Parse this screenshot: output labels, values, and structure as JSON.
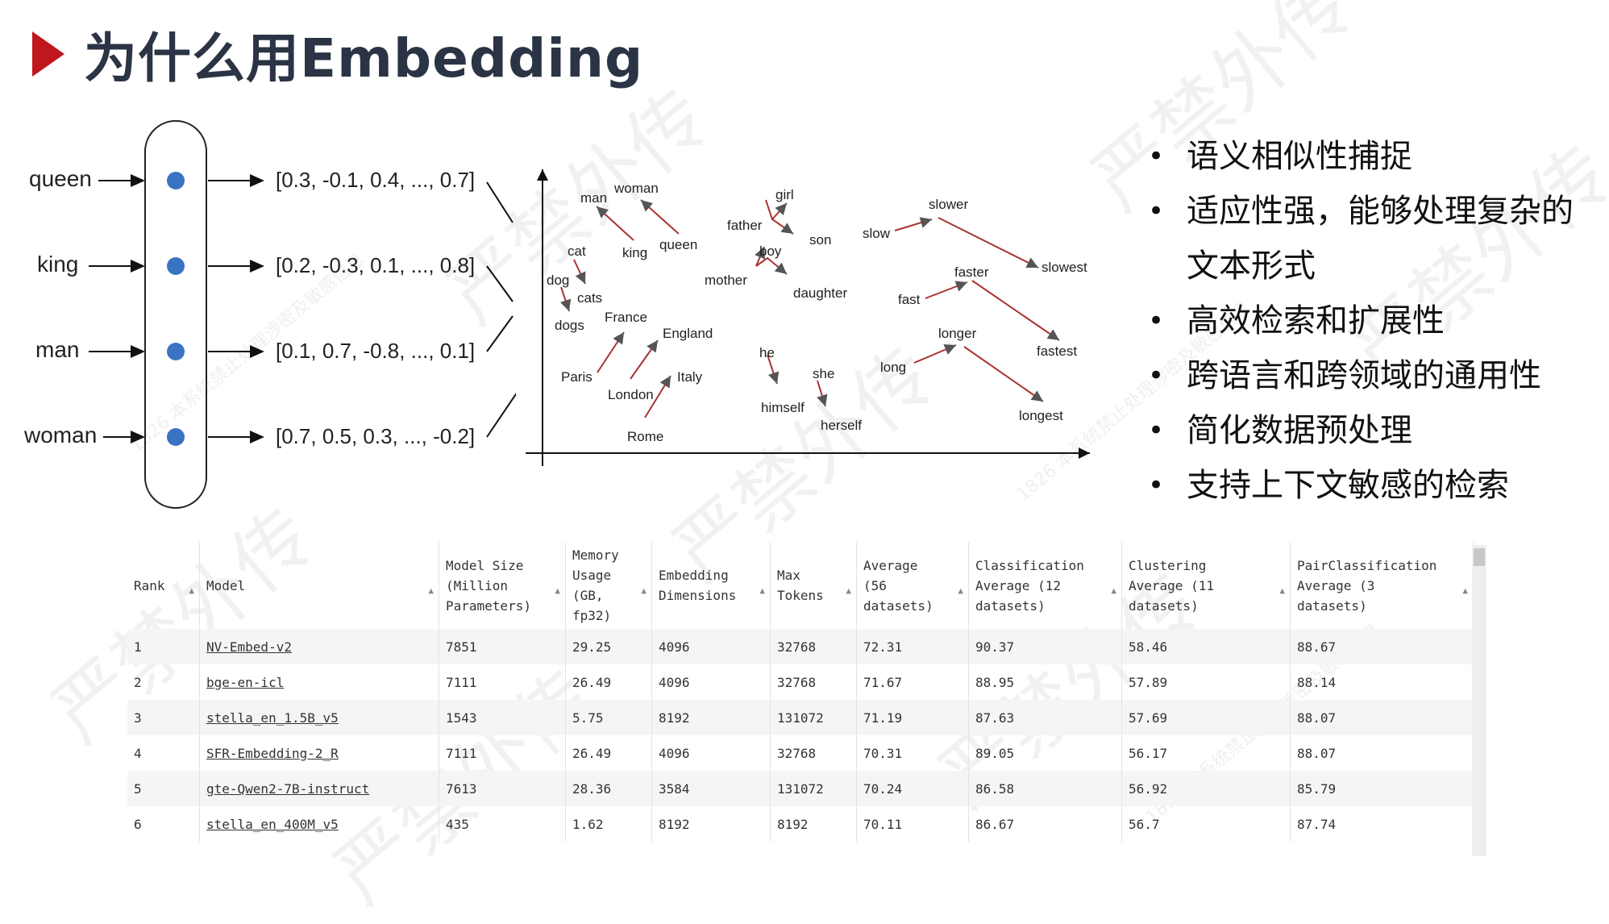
{
  "title": "为什么用Embedding",
  "embedding_diagram": {
    "rows": [
      {
        "word": "queen",
        "vector": "[0.3, -0.1, 0.4, ..., 0.7]"
      },
      {
        "word": "king",
        "vector": "[0.2, -0.3, 0.1, ..., 0.8]"
      },
      {
        "word": "man",
        "vector": "[0.1, 0.7, -0.8, ..., 0.1]"
      },
      {
        "word": "woman",
        "vector": "[0.7, 0.5, 0.3, ..., -0.2]"
      }
    ],
    "dot_color": "#3b73c4"
  },
  "semantic_plot": {
    "words": [
      "man",
      "woman",
      "king",
      "queen",
      "cat",
      "dog",
      "cats",
      "dogs",
      "France",
      "England",
      "Paris",
      "London",
      "Italy",
      "Rome",
      "girl",
      "father",
      "son",
      "boy",
      "mother",
      "daughter",
      "he",
      "she",
      "himself",
      "herself",
      "slow",
      "slower",
      "slowest",
      "fast",
      "faster",
      "fastest",
      "long",
      "longer",
      "longest"
    ]
  },
  "bullets": [
    "语义相似性捕捉",
    "适应性强，能够处理复杂的",
    "文本形式",
    "高效检索和扩展性",
    "跨语言和跨领域的通用性",
    "简化数据预处理",
    "支持上下文敏感的检索"
  ],
  "table": {
    "headers": [
      "Rank",
      "Model",
      "Model Size\n(Million\nParameters)",
      "Memory\nUsage\n(GB,\nfp32)",
      "Embedding\nDimensions",
      "Max\nTokens",
      "Average\n(56\ndatasets)",
      "Classification\nAverage (12\ndatasets)",
      "Clustering\nAverage (11\ndatasets)",
      "PairClassification\nAverage (3\ndatasets)"
    ],
    "rows": [
      [
        "1",
        "NV-Embed-v2",
        "7851",
        "29.25",
        "4096",
        "32768",
        "72.31",
        "90.37",
        "58.46",
        "88.67"
      ],
      [
        "2",
        "bge-en-icl",
        "7111",
        "26.49",
        "4096",
        "32768",
        "71.67",
        "88.95",
        "57.89",
        "88.14"
      ],
      [
        "3",
        "stella_en_1.5B_v5",
        "1543",
        "5.75",
        "8192",
        "131072",
        "71.19",
        "87.63",
        "57.69",
        "88.07"
      ],
      [
        "4",
        "SFR-Embedding-2_R",
        "7111",
        "26.49",
        "4096",
        "32768",
        "70.31",
        "89.05",
        "56.17",
        "88.07"
      ],
      [
        "5",
        "gte-Qwen2-7B-instruct",
        "7613",
        "28.36",
        "3584",
        "131072",
        "70.24",
        "86.58",
        "56.92",
        "85.79"
      ],
      [
        "6",
        "stella_en_400M_v5",
        "435",
        "1.62",
        "8192",
        "8192",
        "70.11",
        "86.67",
        "56.7",
        "87.74"
      ]
    ]
  },
  "watermark": {
    "text": "严禁外传",
    "sub": "1826 本系统禁止处理涉密及敏感信息"
  }
}
